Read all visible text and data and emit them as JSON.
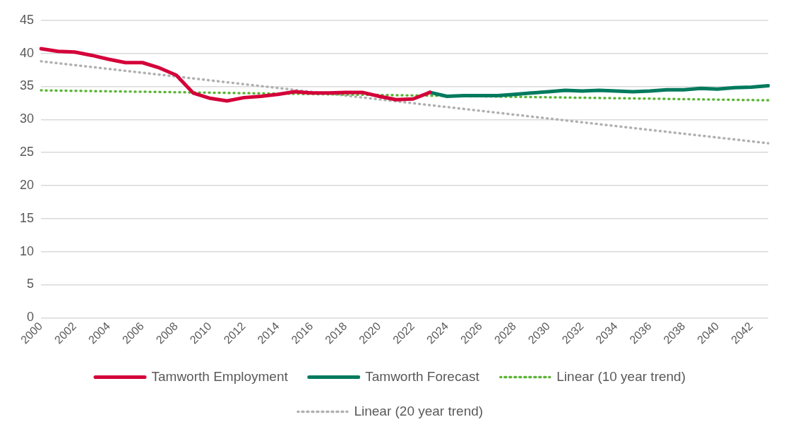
{
  "chart_data": {
    "type": "line",
    "categories": [
      "2000",
      null,
      "2002",
      null,
      "2004",
      null,
      "2006",
      null,
      "2008",
      null,
      "2010",
      null,
      "2012",
      null,
      "2014",
      null,
      "2016",
      null,
      "2018",
      null,
      "2020",
      null,
      "2022",
      null,
      "2024",
      null,
      "2026",
      null,
      "2028",
      null,
      "2030",
      null,
      "2032",
      null,
      "2034",
      null,
      "2036",
      null,
      "2038",
      null,
      "2040",
      null,
      "2042",
      null
    ],
    "ylim": [
      0,
      45
    ],
    "yticks": [
      0,
      5,
      10,
      15,
      20,
      25,
      30,
      35,
      40,
      45
    ],
    "grid": "y",
    "legend": "bottom",
    "marker": "none",
    "series": [
      {
        "name": "Tamworth Employment",
        "color": "#d4003a",
        "line_style": "solid",
        "values": [
          40.7,
          40.3,
          40.2,
          39.7,
          39.1,
          38.6,
          38.6,
          37.8,
          36.7,
          34.0,
          33.2,
          32.8,
          33.3,
          33.5,
          33.8,
          34.2,
          34.0,
          34.0,
          34.1,
          34.1,
          33.5,
          33.0,
          33.1,
          34.1,
          null,
          null,
          null,
          null,
          null,
          null,
          null,
          null,
          null,
          null,
          null,
          null,
          null,
          null,
          null,
          null,
          null,
          null,
          null,
          null
        ]
      },
      {
        "name": "Tamworth Forecast",
        "color": "#007a5e",
        "line_style": "solid",
        "values": [
          null,
          null,
          null,
          null,
          null,
          null,
          null,
          null,
          null,
          null,
          null,
          null,
          null,
          null,
          null,
          null,
          null,
          null,
          null,
          null,
          null,
          null,
          null,
          34.1,
          33.5,
          33.6,
          33.6,
          33.6,
          33.8,
          34.0,
          34.2,
          34.4,
          34.3,
          34.4,
          34.3,
          34.2,
          34.3,
          34.5,
          34.5,
          34.7,
          34.6,
          34.8,
          34.9,
          35.1
        ]
      },
      {
        "name": "Linear (10 year trend)",
        "type": "line",
        "color": "#5ab535",
        "line_style": "dotted",
        "values": [
          34.4,
          null,
          null,
          null,
          null,
          null,
          null,
          null,
          null,
          null,
          null,
          null,
          null,
          null,
          null,
          null,
          null,
          null,
          null,
          null,
          null,
          null,
          null,
          null,
          null,
          null,
          null,
          null,
          null,
          null,
          null,
          null,
          null,
          null,
          null,
          null,
          null,
          null,
          null,
          null,
          null,
          null,
          null,
          32.9
        ]
      },
      {
        "name": "Linear (20 year trend)",
        "type": "line",
        "color": "#b0b0b0",
        "line_style": "dotted",
        "values": [
          38.8,
          null,
          null,
          null,
          null,
          null,
          null,
          null,
          null,
          null,
          null,
          null,
          null,
          null,
          null,
          null,
          null,
          null,
          null,
          null,
          null,
          null,
          null,
          null,
          null,
          null,
          null,
          null,
          null,
          null,
          null,
          null,
          null,
          null,
          null,
          null,
          null,
          null,
          null,
          null,
          null,
          null,
          null,
          26.4
        ]
      }
    ]
  }
}
